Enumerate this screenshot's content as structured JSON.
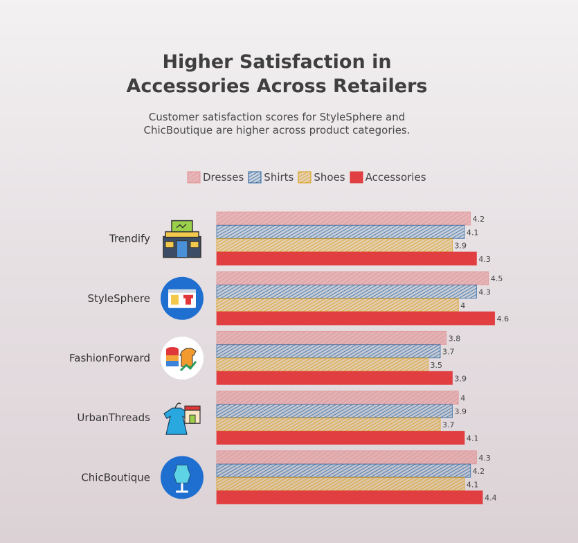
{
  "title_line1": "Higher Satisfaction in",
  "title_line2": "Accessories Across Retailers",
  "subtitle_line1": "Customer satisfaction scores for StyleSphere and",
  "subtitle_line2": "ChicBoutique are higher across product categories.",
  "chart_data": {
    "type": "bar",
    "orientation": "horizontal",
    "categories": [
      "Trendify",
      "StyleSphere",
      "FashionForward",
      "UrbanThreads",
      "ChicBoutique"
    ],
    "series": [
      {
        "name": "Dresses",
        "color": "#e28f91",
        "values": [
          4.2,
          4.5,
          3.8,
          4.0,
          4.3
        ]
      },
      {
        "name": "Shirts",
        "color": "#1d5f9c",
        "values": [
          4.1,
          4.3,
          3.7,
          3.9,
          4.2
        ]
      },
      {
        "name": "Shoes",
        "color": "#d9980f",
        "values": [
          3.9,
          4.0,
          3.5,
          3.7,
          4.1
        ]
      },
      {
        "name": "Accessories",
        "color": "#e0383a",
        "values": [
          4.3,
          4.6,
          3.9,
          4.1,
          4.4
        ]
      }
    ],
    "xlim": [
      0,
      4.6
    ],
    "legend_position": "top",
    "grid": false,
    "icons": [
      "storefront-icon",
      "online-shop-icon",
      "fashion-analytics-icon",
      "clothing-store-icon",
      "mannequin-icon"
    ]
  }
}
